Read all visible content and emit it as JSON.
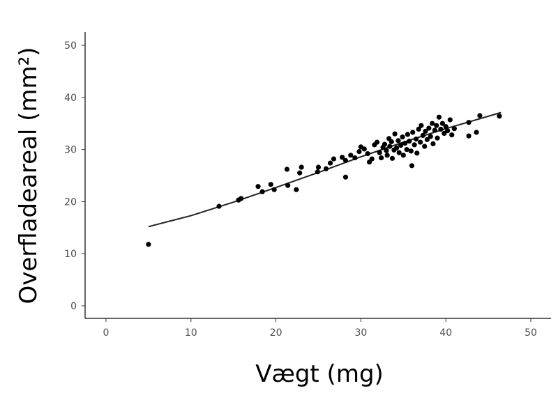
{
  "chart_data": {
    "type": "scatter",
    "title": "",
    "xlabel": "Vægt (mg)",
    "ylabel": "Overfladeareal (mm²)",
    "xlim": [
      -2,
      52
    ],
    "ylim": [
      -2,
      52
    ],
    "xticks": [
      "0",
      "10",
      "20",
      "30",
      "40",
      "50"
    ],
    "yticks": [
      "0",
      "10",
      "20",
      "30",
      "40",
      "50"
    ],
    "grid": false,
    "point_color": "#000000",
    "points": [
      [
        5.0,
        11.8
      ],
      [
        13.3,
        19.1
      ],
      [
        15.6,
        20.3
      ],
      [
        15.9,
        20.6
      ],
      [
        17.9,
        22.9
      ],
      [
        18.4,
        21.9
      ],
      [
        19.4,
        23.3
      ],
      [
        19.8,
        22.3
      ],
      [
        21.3,
        26.2
      ],
      [
        21.4,
        23.1
      ],
      [
        22.4,
        22.3
      ],
      [
        22.8,
        25.5
      ],
      [
        23.0,
        26.6
      ],
      [
        24.9,
        25.7
      ],
      [
        25.0,
        26.6
      ],
      [
        25.9,
        26.3
      ],
      [
        26.4,
        27.4
      ],
      [
        26.8,
        28.2
      ],
      [
        27.8,
        28.5
      ],
      [
        28.2,
        24.7
      ],
      [
        28.2,
        27.9
      ],
      [
        28.8,
        28.9
      ],
      [
        29.3,
        28.4
      ],
      [
        29.8,
        29.6
      ],
      [
        30.0,
        30.5
      ],
      [
        30.4,
        30.1
      ],
      [
        30.8,
        29.2
      ],
      [
        31.0,
        27.6
      ],
      [
        31.3,
        28.2
      ],
      [
        31.6,
        30.9
      ],
      [
        31.9,
        31.4
      ],
      [
        32.2,
        29.4
      ],
      [
        32.4,
        28.4
      ],
      [
        32.6,
        30.4
      ],
      [
        32.8,
        31.0
      ],
      [
        33.0,
        29.8
      ],
      [
        33.1,
        28.9
      ],
      [
        33.3,
        32.1
      ],
      [
        33.4,
        30.6
      ],
      [
        33.6,
        31.5
      ],
      [
        33.7,
        28.3
      ],
      [
        33.9,
        29.9
      ],
      [
        34.0,
        33.0
      ],
      [
        34.2,
        30.3
      ],
      [
        34.4,
        31.7
      ],
      [
        34.5,
        29.4
      ],
      [
        34.7,
        30.8
      ],
      [
        34.9,
        32.4
      ],
      [
        35.0,
        28.9
      ],
      [
        35.2,
        31.2
      ],
      [
        35.4,
        30.0
      ],
      [
        35.5,
        32.9
      ],
      [
        35.7,
        31.6
      ],
      [
        35.9,
        29.7
      ],
      [
        36.0,
        26.9
      ],
      [
        36.1,
        33.3
      ],
      [
        36.3,
        30.9
      ],
      [
        36.5,
        32.0
      ],
      [
        36.6,
        29.3
      ],
      [
        36.8,
        33.9
      ],
      [
        37.0,
        31.4
      ],
      [
        37.1,
        34.6
      ],
      [
        37.3,
        32.7
      ],
      [
        37.5,
        30.6
      ],
      [
        37.6,
        33.5
      ],
      [
        37.8,
        31.9
      ],
      [
        38.0,
        34.1
      ],
      [
        38.2,
        32.5
      ],
      [
        38.4,
        35.0
      ],
      [
        38.5,
        31.1
      ],
      [
        38.7,
        33.7
      ],
      [
        38.9,
        34.6
      ],
      [
        39.0,
        32.2
      ],
      [
        39.2,
        36.2
      ],
      [
        39.4,
        33.9
      ],
      [
        39.6,
        35.0
      ],
      [
        39.8,
        33.1
      ],
      [
        40.0,
        34.4
      ],
      [
        40.2,
        33.6
      ],
      [
        40.5,
        35.7
      ],
      [
        40.7,
        32.8
      ],
      [
        41.0,
        34.0
      ],
      [
        42.7,
        35.2
      ],
      [
        42.7,
        32.6
      ],
      [
        43.6,
        33.3
      ],
      [
        44.0,
        36.5
      ],
      [
        46.3,
        36.4
      ]
    ],
    "fit_line": [
      [
        5,
        15.2
      ],
      [
        10,
        17.3
      ],
      [
        15,
        19.9
      ],
      [
        20,
        22.7
      ],
      [
        25,
        25.6
      ],
      [
        30,
        28.6
      ],
      [
        35,
        31.4
      ],
      [
        40,
        34.0
      ],
      [
        46.5,
        37.1
      ]
    ]
  }
}
